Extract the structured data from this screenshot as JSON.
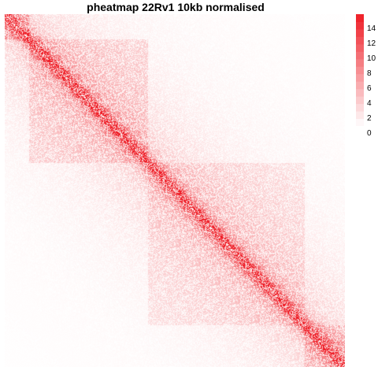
{
  "chart_data": {
    "type": "heatmap",
    "title": "pheatmap 22Rv1 10kb normalised",
    "xlabel": "",
    "ylabel": "",
    "value_range": [
      0,
      15
    ],
    "legend": {
      "placement": "right",
      "ticks": [
        0,
        2,
        4,
        6,
        8,
        10,
        12,
        14
      ],
      "tick_labels": [
        "0",
        "2",
        "4",
        "6",
        "8",
        "10",
        "12",
        "14"
      ],
      "levels": [
        0,
        1,
        2,
        3,
        4,
        5,
        6,
        7,
        8,
        9,
        10,
        11,
        12,
        13,
        14,
        15
      ]
    },
    "colors": {
      "low": "#ffffff",
      "high": "#ee1c25"
    },
    "matrix_description_values": {
      "diagonal_max": 15,
      "domains": [
        {
          "start_fraction": 0.0,
          "end_fraction": 0.07,
          "mean_value": 3
        },
        {
          "start_fraction": 0.07,
          "end_fraction": 0.42,
          "mean_value": 2
        },
        {
          "start_fraction": 0.42,
          "end_fraction": 0.88,
          "mean_value": 1.5
        },
        {
          "start_fraction": 0.88,
          "end_fraction": 1.0,
          "mean_value": 2.5
        }
      ]
    }
  }
}
